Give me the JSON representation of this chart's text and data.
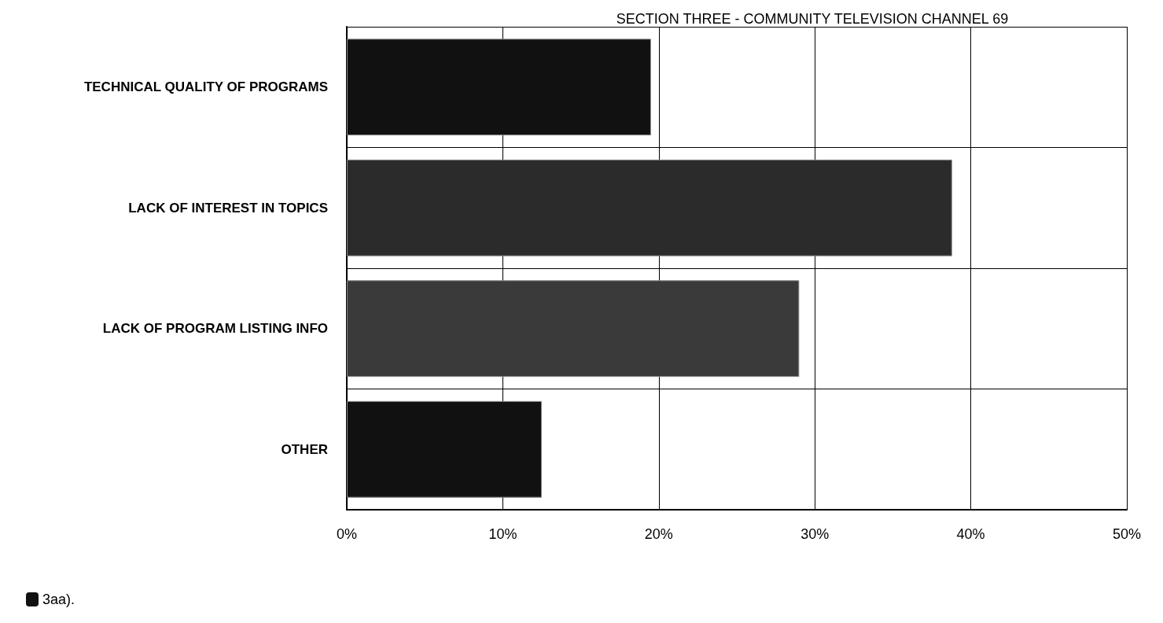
{
  "chart_data": {
    "type": "bar",
    "orientation": "horizontal",
    "title": "SECTION THREE - COMMUNITY TELEVISION CHANNEL 69",
    "categories": [
      "TECHNICAL QUALITY OF PROGRAMS",
      "LACK OF INTEREST IN TOPICS",
      "LACK OF PROGRAM LISTING INFO",
      "OTHER"
    ],
    "series": [
      {
        "name": "3aa).",
        "color": "#111111",
        "colors": [
          "#111111",
          "#2b2b2b",
          "#3a3a3a",
          "#111111"
        ],
        "values": [
          19.5,
          38.8,
          29.0,
          12.5
        ]
      }
    ],
    "xlim": [
      0,
      50
    ],
    "xticks": [
      {
        "value": 0,
        "label": "0%"
      },
      {
        "value": 10,
        "label": "10%"
      },
      {
        "value": 20,
        "label": "20%"
      },
      {
        "value": 30,
        "label": "30%"
      },
      {
        "value": 40,
        "label": "40%"
      },
      {
        "value": 50,
        "label": "50%"
      }
    ],
    "grid": true,
    "legend": "bottom left"
  }
}
